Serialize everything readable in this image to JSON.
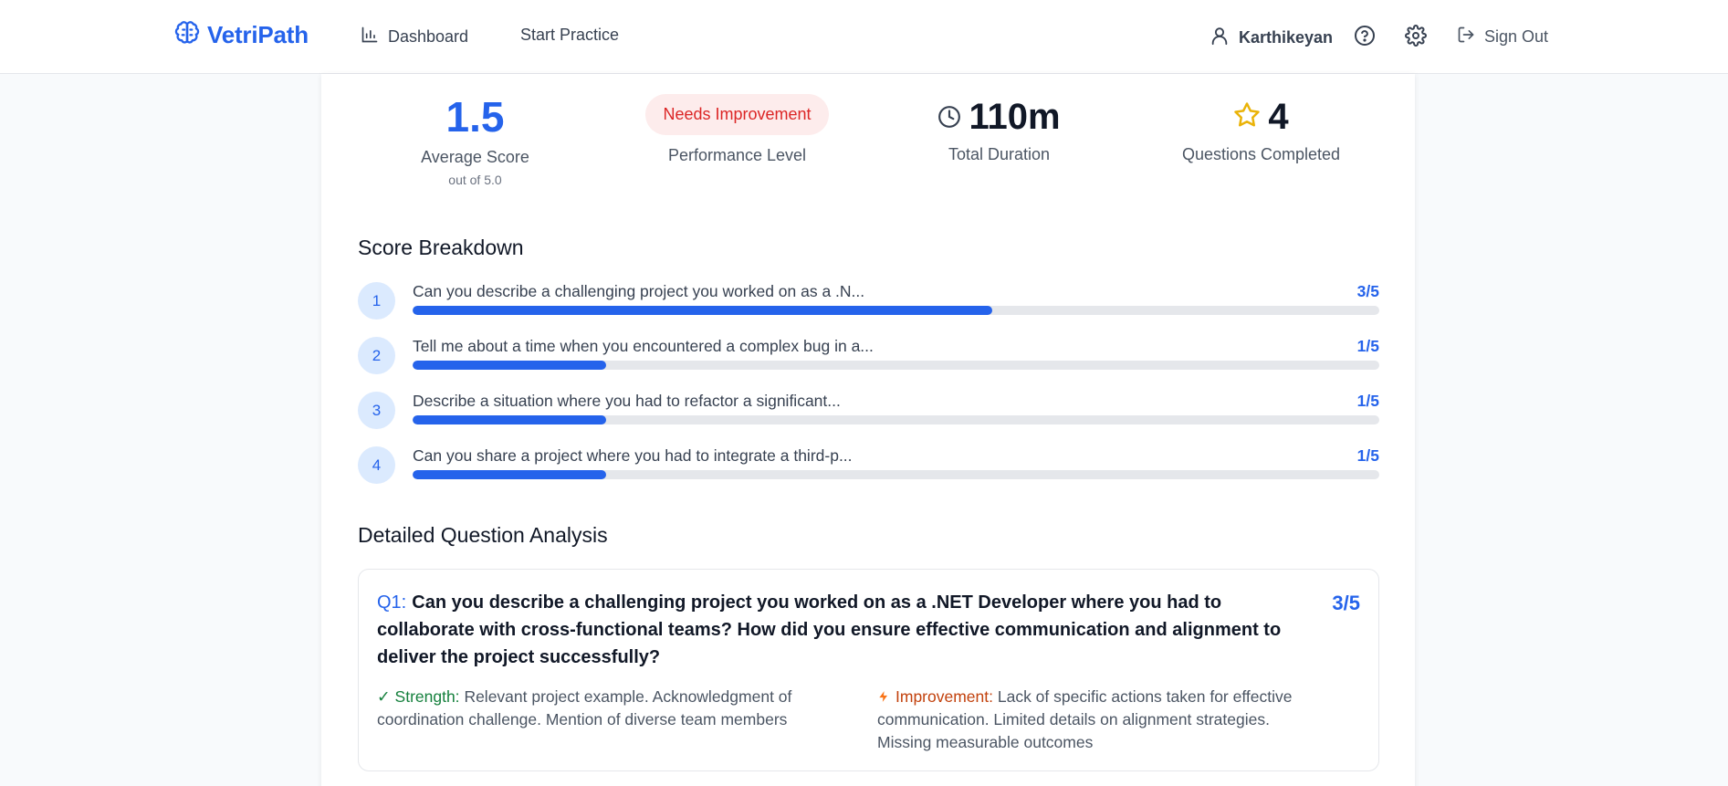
{
  "header": {
    "brand": "VetriPath",
    "nav": {
      "dashboard": "Dashboard",
      "start_practice": "Start Practice"
    },
    "user_name": "Karthikeyan",
    "sign_out": "Sign Out"
  },
  "summary": {
    "average_score": "1.5",
    "average_label": "Average Score",
    "average_sub": "out of 5.0",
    "performance_badge": "Needs Improvement",
    "performance_label": "Performance Level",
    "duration": "110m",
    "duration_label": "Total Duration",
    "questions_completed": "4",
    "questions_label": "Questions Completed"
  },
  "breakdown": {
    "title": "Score Breakdown",
    "items": [
      {
        "num": "1",
        "question": "Can you describe a challenging project you worked on as a .N...",
        "score": "3/5",
        "fraction": 0.6
      },
      {
        "num": "2",
        "question": "Tell me about a time when you encountered a complex bug in a...",
        "score": "1/5",
        "fraction": 0.2
      },
      {
        "num": "3",
        "question": "Describe a situation where you had to refactor a significant...",
        "score": "1/5",
        "fraction": 0.2
      },
      {
        "num": "4",
        "question": "Can you share a project where you had to integrate a third-p...",
        "score": "1/5",
        "fraction": 0.2
      }
    ]
  },
  "detail": {
    "title": "Detailed Question Analysis",
    "q1": {
      "prefix": "Q1:",
      "question": "Can you describe a challenging project you worked on as a .NET Developer where you had to collaborate with cross-functional teams? How did you ensure effective communication and alignment to deliver the project successfully?",
      "score": "3/5",
      "strength_label": "Strength:",
      "strength_text": "Relevant project example. Acknowledgment of coordination challenge. Mention of diverse team members",
      "improvement_label": "Improvement:",
      "improvement_text": "Lack of specific actions taken for effective communication. Limited details on alignment strategies. Missing measurable outcomes"
    }
  },
  "colors": {
    "accent": "#2563eb",
    "badge_bg": "#fdecec",
    "badge_text": "#dc2626",
    "strength": "#15803d",
    "improvement": "#c2410c",
    "star": "#eab308"
  }
}
